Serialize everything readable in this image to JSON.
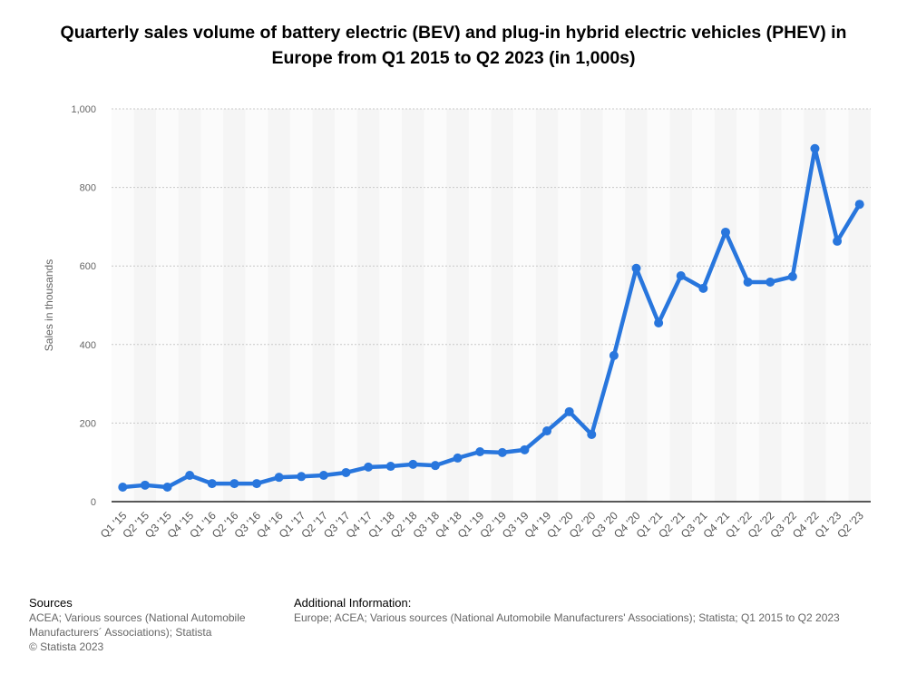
{
  "chart_data": {
    "type": "line",
    "title": "Quarterly sales volume of battery electric (BEV) and plug-in hybrid electric vehicles (PHEV) in Europe from Q1 2015 to Q2 2023 (in 1,000s)",
    "xlabel": "",
    "ylabel": "Sales in thousands",
    "ylim": [
      0,
      1000
    ],
    "yticks": [
      0,
      200,
      400,
      600,
      800,
      1000
    ],
    "ytick_labels": [
      "0",
      "200",
      "400",
      "600",
      "800",
      "1,000"
    ],
    "grid": true,
    "color": "#2876dd",
    "categories": [
      "Q1 '15",
      "Q2 '15",
      "Q3 '15",
      "Q4 '15",
      "Q1 '16",
      "Q2 '16",
      "Q3 '16",
      "Q4 '16",
      "Q1 '17",
      "Q2 '17",
      "Q3 '17",
      "Q4 '17",
      "Q1 '18",
      "Q2 '18",
      "Q3 '18",
      "Q4 '18",
      "Q1 '19",
      "Q2 '19",
      "Q3 '19",
      "Q4 '19",
      "Q1 '20",
      "Q2 '20",
      "Q3 '20",
      "Q4 '20",
      "Q1 '21",
      "Q2 '21",
      "Q3 '21",
      "Q4 '21",
      "Q1 '22",
      "Q2 '22",
      "Q3 '22",
      "Q4 '22",
      "Q1 '23",
      "Q2 '23"
    ],
    "values": [
      37,
      42,
      37,
      67,
      46,
      46,
      46,
      62,
      64,
      67,
      74,
      88,
      90,
      95,
      92,
      111,
      127,
      125,
      132,
      180,
      229,
      171,
      372,
      594,
      455,
      575,
      543,
      686,
      559,
      559,
      573,
      899,
      663,
      757
    ]
  },
  "footer": {
    "sources_heading": "Sources",
    "sources_text": "ACEA; Various sources (National Automobile Manufacturers´ Associations); Statista",
    "copyright": "© Statista 2023",
    "info_heading": "Additional Information:",
    "info_text": "Europe; ACEA; Various sources (National Automobile Manufacturers' Associations); Statista; Q1 2015 to Q2 2023"
  }
}
